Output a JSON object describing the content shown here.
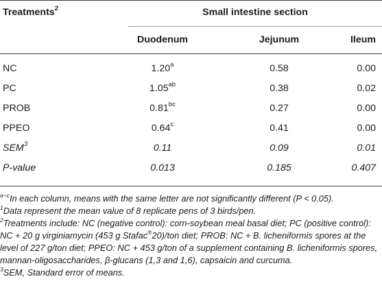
{
  "table": {
    "header": {
      "treatments_label": "Treatments",
      "treatments_sup": "2",
      "group_label": "Small intestine section",
      "columns": [
        "Duodenum",
        "Jejunum",
        "Ileum"
      ]
    },
    "rows": [
      {
        "label": "NC",
        "label_italic": false,
        "duodenum": "1.20",
        "duodenum_sup": "a",
        "jejunum": "0.58",
        "ileum": "0.00"
      },
      {
        "label": "PC",
        "label_italic": false,
        "duodenum": "1.05",
        "duodenum_sup": "ab",
        "jejunum": "0.38",
        "ileum": "0.02"
      },
      {
        "label": "PROB",
        "label_italic": false,
        "duodenum": "0.81",
        "duodenum_sup": "bc",
        "jejunum": "0.27",
        "ileum": "0.00"
      },
      {
        "label": "PPEO",
        "label_italic": false,
        "duodenum": "0.64",
        "duodenum_sup": "c",
        "jejunum": "0.41",
        "ileum": "0.00"
      },
      {
        "label": "SEM",
        "label_sup": "3",
        "label_italic": true,
        "duodenum": "0.11",
        "duodenum_sup": "",
        "jejunum": "0.09",
        "ileum": "0.01"
      },
      {
        "label": "P-value",
        "label_italic": true,
        "duodenum": "0.013",
        "duodenum_sup": "",
        "jejunum": "0.185",
        "ileum": "0.407"
      }
    ]
  },
  "footnotes": {
    "n1_sup": "a−c",
    "n1_text": "In each column, means with the same letter are not significantly different (P < 0.05).",
    "n2_sup": "1",
    "n2_text": "Data represent the mean value of 8 replicate pens of 3 birds/pen.",
    "n3_sup": "2",
    "n3_text_a": "Treatments include: NC (negative control): corn-soybean meal basal diet; PC (positive control): NC + 20 g virginiamycin (453 g Stafac",
    "n3_reg": "®",
    "n3_text_b": "20)/ton diet; PROB: NC + B. licheniformis spores at the level of 227 g/ton diet; PPEO: NC + 453 g/ton of a supplement containing B. licheniformis spores, mannan-oligosaccharides, β-glucans (1,3 and 1,6), capsaicin and curcuma.",
    "n4_sup": "3",
    "n4_text": "SEM, Standard error of means."
  }
}
